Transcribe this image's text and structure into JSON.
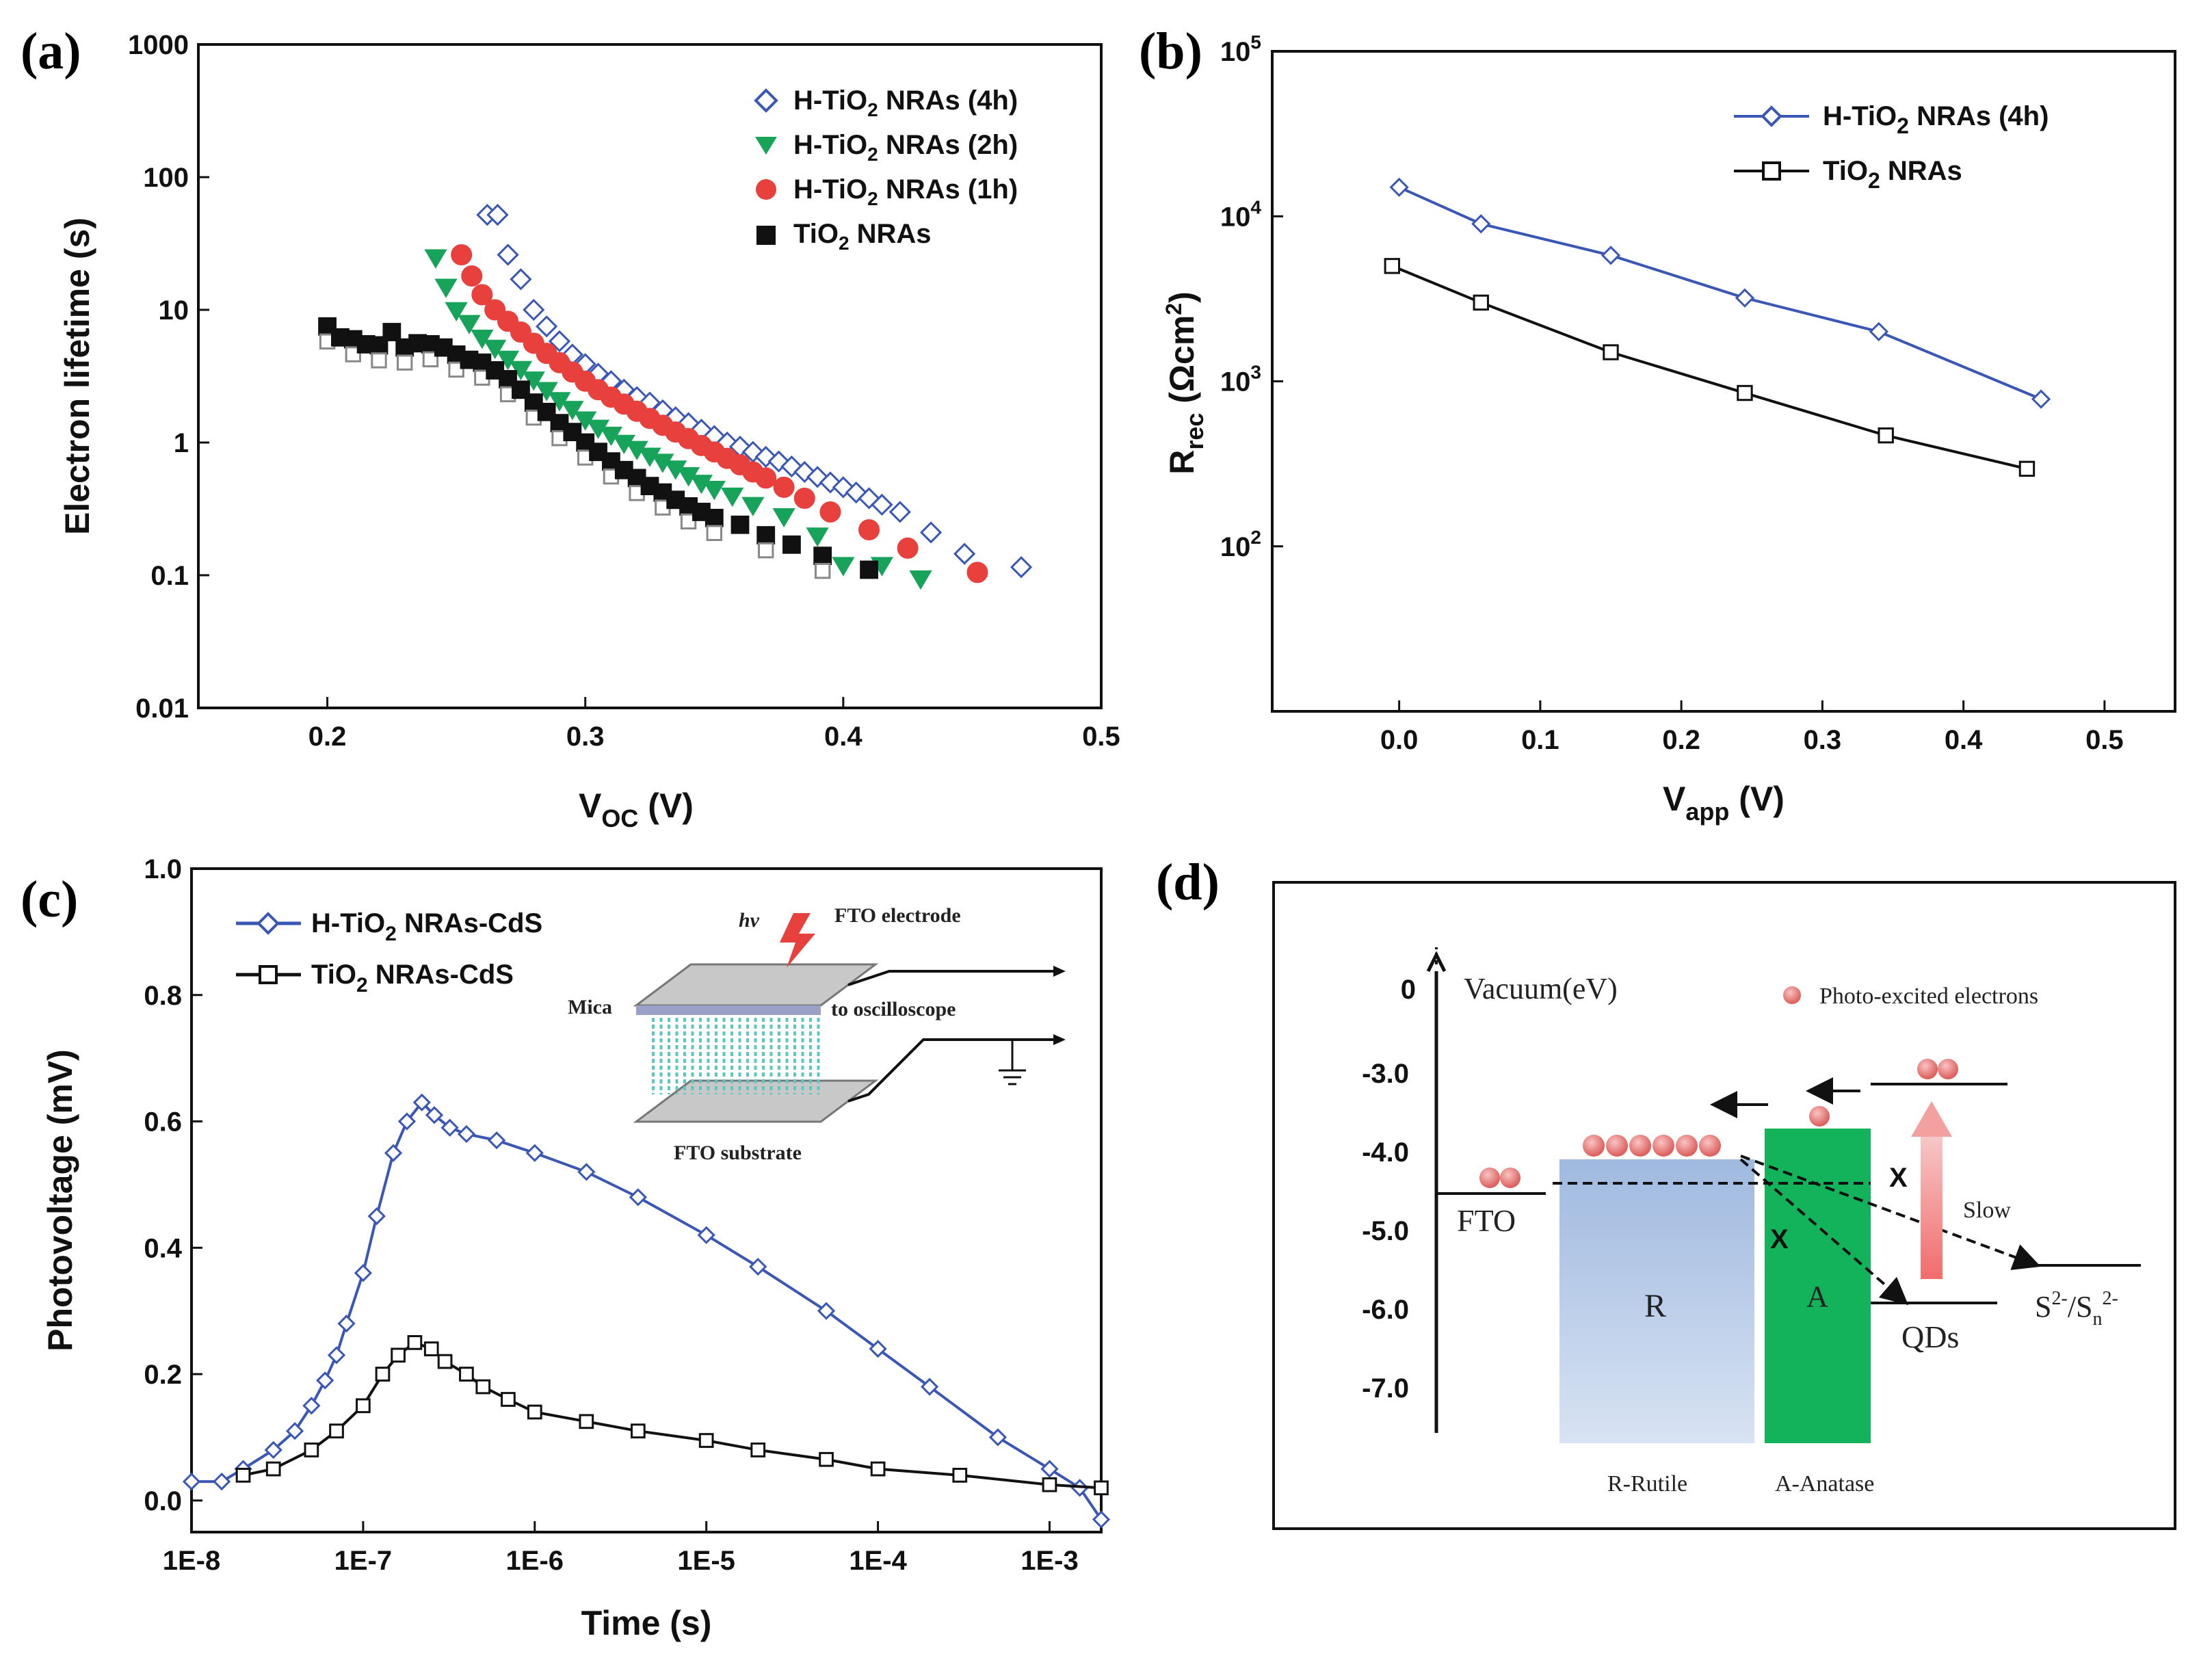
{
  "colors": {
    "blue": "#3a57b5",
    "green": "#17a35a",
    "red": "#e8413d",
    "black": "#111111"
  },
  "chart_data": [
    {
      "panel": "(a)",
      "type": "scatter",
      "yscale": "log",
      "xlabel_main": "V",
      "xlabel_sub": "OC",
      "xlabel_tail": " (V)",
      "ylabel": "Electron lifetime (s)",
      "xlim": [
        0.15,
        0.5
      ],
      "ylim": [
        0.01,
        1000
      ],
      "xticks": [
        0.2,
        0.3,
        0.4,
        0.5
      ],
      "xtick_labels": [
        "0.2",
        "0.3",
        "0.4",
        "0.5"
      ],
      "yticks": [
        0.01,
        0.1,
        1,
        10,
        100,
        1000
      ],
      "ytick_labels": [
        "0.01",
        "0.1",
        "1",
        "10",
        "100",
        "1000"
      ],
      "series": [
        {
          "name": "H-TiO2 NRAs (4h)",
          "legend_pre": "H-TiO",
          "legend_sub": "2",
          "legend_post": " NRAs (4h)",
          "color": "#3a57b5",
          "marker": "diamond",
          "x": [
            0.262,
            0.266,
            0.27,
            0.275,
            0.28,
            0.285,
            0.29,
            0.295,
            0.3,
            0.305,
            0.31,
            0.315,
            0.32,
            0.325,
            0.33,
            0.335,
            0.34,
            0.345,
            0.35,
            0.355,
            0.36,
            0.365,
            0.37,
            0.375,
            0.38,
            0.385,
            0.39,
            0.395,
            0.4,
            0.405,
            0.41,
            0.415,
            0.422,
            0.434,
            0.447,
            0.469
          ],
          "y": [
            52,
            52,
            26,
            17,
            10,
            7.5,
            5.8,
            4.6,
            3.9,
            3.3,
            2.9,
            2.5,
            2.2,
            2.0,
            1.75,
            1.55,
            1.4,
            1.25,
            1.12,
            1.0,
            0.93,
            0.85,
            0.78,
            0.72,
            0.66,
            0.6,
            0.55,
            0.5,
            0.46,
            0.42,
            0.38,
            0.34,
            0.3,
            0.21,
            0.145,
            0.115
          ]
        },
        {
          "name": "H-TiO2 NRAs (2h)",
          "legend_pre": "H-TiO",
          "legend_sub": "2",
          "legend_post": " NRAs (2h)",
          "color": "#17a35a",
          "marker": "triangle-down",
          "x": [
            0.242,
            0.246,
            0.25,
            0.255,
            0.26,
            0.265,
            0.27,
            0.275,
            0.28,
            0.285,
            0.29,
            0.295,
            0.3,
            0.305,
            0.31,
            0.315,
            0.32,
            0.325,
            0.33,
            0.335,
            0.34,
            0.345,
            0.35,
            0.357,
            0.365,
            0.377,
            0.39,
            0.4,
            0.415,
            0.43
          ],
          "y": [
            25,
            15,
            10,
            8,
            6.2,
            5.2,
            4.3,
            3.6,
            3.0,
            2.5,
            2.1,
            1.8,
            1.5,
            1.3,
            1.15,
            1.0,
            0.9,
            0.8,
            0.72,
            0.64,
            0.57,
            0.5,
            0.45,
            0.4,
            0.34,
            0.28,
            0.2,
            0.12,
            0.12,
            0.095
          ]
        },
        {
          "name": "H-TiO2 NRAs (1h)",
          "legend_pre": "H-TiO",
          "legend_sub": "2",
          "legend_post": " NRAs (1h)",
          "color": "#e8413d",
          "marker": "circle",
          "x": [
            0.252,
            0.256,
            0.26,
            0.265,
            0.27,
            0.275,
            0.28,
            0.285,
            0.29,
            0.295,
            0.3,
            0.305,
            0.31,
            0.315,
            0.32,
            0.325,
            0.33,
            0.335,
            0.34,
            0.345,
            0.35,
            0.355,
            0.36,
            0.365,
            0.37,
            0.377,
            0.385,
            0.395,
            0.41,
            0.425,
            0.452
          ],
          "y": [
            26,
            18,
            13,
            10,
            8.2,
            6.8,
            5.6,
            4.7,
            4.0,
            3.4,
            2.9,
            2.5,
            2.2,
            1.95,
            1.72,
            1.52,
            1.35,
            1.2,
            1.07,
            0.95,
            0.85,
            0.76,
            0.68,
            0.6,
            0.54,
            0.46,
            0.38,
            0.3,
            0.22,
            0.16,
            0.105
          ]
        },
        {
          "name": "TiO2 NRAs",
          "legend_pre": "TiO",
          "legend_sub": "2",
          "legend_post": " NRAs",
          "color": "#111111",
          "marker": "square",
          "x": [
            0.2,
            0.205,
            0.21,
            0.215,
            0.22,
            0.225,
            0.23,
            0.235,
            0.24,
            0.245,
            0.25,
            0.255,
            0.26,
            0.265,
            0.27,
            0.275,
            0.28,
            0.285,
            0.29,
            0.295,
            0.3,
            0.305,
            0.31,
            0.315,
            0.32,
            0.325,
            0.33,
            0.335,
            0.34,
            0.345,
            0.35,
            0.36,
            0.37,
            0.38,
            0.392,
            0.41
          ],
          "y": [
            7.5,
            6.2,
            6.0,
            5.5,
            5.4,
            6.8,
            5.2,
            5.6,
            5.5,
            5.2,
            4.6,
            4.2,
            4.0,
            3.5,
            3.0,
            2.5,
            2.0,
            1.7,
            1.4,
            1.2,
            1.0,
            0.85,
            0.72,
            0.62,
            0.54,
            0.47,
            0.42,
            0.37,
            0.33,
            0.3,
            0.27,
            0.24,
            0.2,
            0.17,
            0.14,
            0.11
          ]
        }
      ]
    },
    {
      "panel": "(b)",
      "type": "line",
      "yscale": "log",
      "xlabel_main": "V",
      "xlabel_sub": "app",
      "xlabel_tail": " (V)",
      "ylabel_main": "R",
      "ylabel_sub": "rec",
      "ylabel_tail": " (Ωcm",
      "ylabel_sup": "2",
      "ylabel_end": ")",
      "xlim": [
        -0.09,
        0.55
      ],
      "ylim": [
        10,
        100000
      ],
      "xticks": [
        0.0,
        0.1,
        0.2,
        0.3,
        0.4,
        0.5
      ],
      "xtick_labels": [
        "0.0",
        "0.1",
        "0.2",
        "0.3",
        "0.4",
        "0.5"
      ],
      "yticks": [
        100,
        1000,
        10000,
        100000
      ],
      "ytick_base": "10",
      "ytick_exps": [
        "2",
        "3",
        "4",
        "5"
      ],
      "series": [
        {
          "name": "H-TiO2 NRAs (4h)",
          "legend_pre": "H-TiO",
          "legend_sub": "2",
          "legend_post": " NRAs (4h)",
          "color": "#3a57b5",
          "marker": "diamond",
          "x": [
            0.0,
            0.058,
            0.15,
            0.245,
            0.34,
            0.455
          ],
          "y": [
            15000,
            9000,
            5800,
            3200,
            2000,
            780
          ]
        },
        {
          "name": "TiO2 NRAs",
          "legend_pre": "TiO",
          "legend_sub": "2",
          "legend_post": " NRAs",
          "color": "#111111",
          "marker": "square",
          "x": [
            -0.005,
            0.058,
            0.15,
            0.245,
            0.345,
            0.445
          ],
          "y": [
            5000,
            3000,
            1500,
            850,
            470,
            295
          ]
        }
      ]
    },
    {
      "panel": "(c)",
      "type": "line",
      "xscale": "log",
      "xlabel": "Time (s)",
      "ylabel": "Photovoltage (mV)",
      "xlim": [
        1e-08,
        0.002
      ],
      "ylim": [
        -0.05,
        1.0
      ],
      "xticks": [
        1e-08,
        1e-07,
        1e-06,
        1e-05,
        0.0001,
        0.001
      ],
      "xtick_labels": [
        "1E-8",
        "1E-7",
        "1E-6",
        "1E-5",
        "1E-4",
        "1E-3"
      ],
      "yticks": [
        0.0,
        0.2,
        0.4,
        0.6,
        0.8,
        1.0
      ],
      "ytick_labels": [
        "0.0",
        "0.2",
        "0.4",
        "0.6",
        "0.8",
        "1.0"
      ],
      "series": [
        {
          "name": "H-TiO2 NRAs-CdS",
          "legend_pre": "H-TiO",
          "legend_sub": "2",
          "legend_post": " NRAs-CdS",
          "color": "#3a57b5",
          "marker": "diamond",
          "x": [
            1e-08,
            1.5e-08,
            2e-08,
            3e-08,
            4e-08,
            5e-08,
            6e-08,
            7e-08,
            8e-08,
            1e-07,
            1.2e-07,
            1.5e-07,
            1.8e-07,
            2.2e-07,
            2.6e-07,
            3.2e-07,
            4e-07,
            6e-07,
            1e-06,
            2e-06,
            4e-06,
            1e-05,
            2e-05,
            5e-05,
            0.0001,
            0.0002,
            0.0005,
            0.001,
            0.0015,
            0.002
          ],
          "y": [
            0.03,
            0.03,
            0.05,
            0.08,
            0.11,
            0.15,
            0.19,
            0.23,
            0.28,
            0.36,
            0.45,
            0.55,
            0.6,
            0.63,
            0.61,
            0.59,
            0.58,
            0.57,
            0.55,
            0.52,
            0.48,
            0.42,
            0.37,
            0.3,
            0.24,
            0.18,
            0.1,
            0.05,
            0.02,
            -0.03
          ]
        },
        {
          "name": "TiO2 NRAs-CdS",
          "legend_pre": "TiO",
          "legend_sub": "2",
          "legend_post": " NRAs-CdS",
          "color": "#111111",
          "marker": "square",
          "x": [
            2e-08,
            3e-08,
            5e-08,
            7e-08,
            1e-07,
            1.3e-07,
            1.6e-07,
            2e-07,
            2.5e-07,
            3e-07,
            4e-07,
            5e-07,
            7e-07,
            1e-06,
            2e-06,
            4e-06,
            1e-05,
            2e-05,
            5e-05,
            0.0001,
            0.0003,
            0.001,
            0.002
          ],
          "y": [
            0.04,
            0.05,
            0.08,
            0.11,
            0.15,
            0.2,
            0.23,
            0.25,
            0.24,
            0.22,
            0.2,
            0.18,
            0.16,
            0.14,
            0.125,
            0.11,
            0.095,
            0.08,
            0.065,
            0.05,
            0.04,
            0.025,
            0.02
          ]
        }
      ]
    }
  ],
  "inset": {
    "hv": "hν",
    "electrode": "FTO electrode",
    "mica": "Mica",
    "scope": "to oscilloscope",
    "substrate": "FTO substrate"
  },
  "diagram": {
    "axis_zero": "0",
    "axis_title": "Vacuum(eV)",
    "ticks": [
      "-3.0",
      "-4.0",
      "-5.0",
      "-6.0",
      "-7.0"
    ],
    "legend": "Photo-excited electrons",
    "fto": "FTO",
    "rutile": "R",
    "anatase": "A",
    "qds": "QDs",
    "electrolyte_main": "S",
    "electrolyte_sup1": "2-",
    "electrolyte_mid": "/S",
    "electrolyte_sub": "n",
    "electrolyte_sup2": "2-",
    "slow": "Slow",
    "rutile_caption": "R-Rutile",
    "anatase_caption": "A-Anatase",
    "cross": "X"
  },
  "panel_labels": {
    "a": "(a)",
    "b": "(b)",
    "c": "(c)",
    "d": "(d)"
  }
}
